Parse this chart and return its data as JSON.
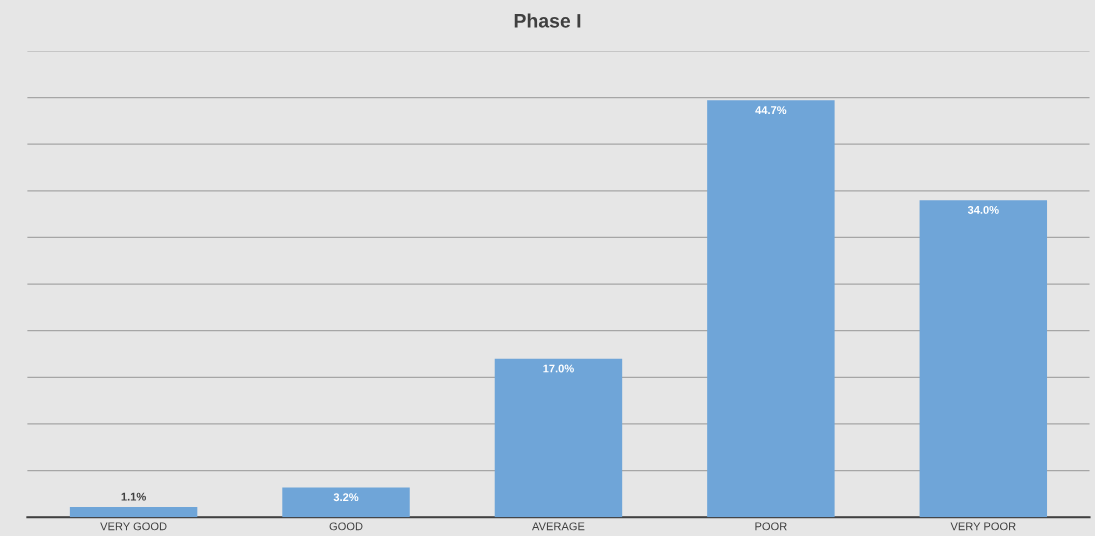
{
  "chart_data": {
    "type": "bar",
    "title": "Phase I",
    "categories": [
      "VERY GOOD",
      "GOOD",
      "AVERAGE",
      "POOR",
      "VERY POOR"
    ],
    "values": [
      1.1,
      3.2,
      17.0,
      44.7,
      34.0
    ],
    "value_labels": [
      "1.1%",
      "3.2%",
      "17.0%",
      "44.7%",
      "34.0%"
    ],
    "color": "#6fa5d8",
    "ylim": [
      0,
      50
    ],
    "yticks": [
      {
        "value": 0,
        "label": null
      },
      {
        "value": 5,
        "label": null
      },
      {
        "value": 10,
        "label": null
      },
      {
        "value": 15,
        "label": null
      },
      {
        "value": 20,
        "label": null
      },
      {
        "value": 25,
        "label": null
      },
      {
        "value": 30,
        "label": null
      },
      {
        "value": 35,
        "label": null
      },
      {
        "value": 40,
        "label": null
      },
      {
        "value": 45,
        "label": null
      },
      {
        "value": 50,
        "label": null
      }
    ],
    "grid": "y",
    "tick_labels": "x"
  }
}
